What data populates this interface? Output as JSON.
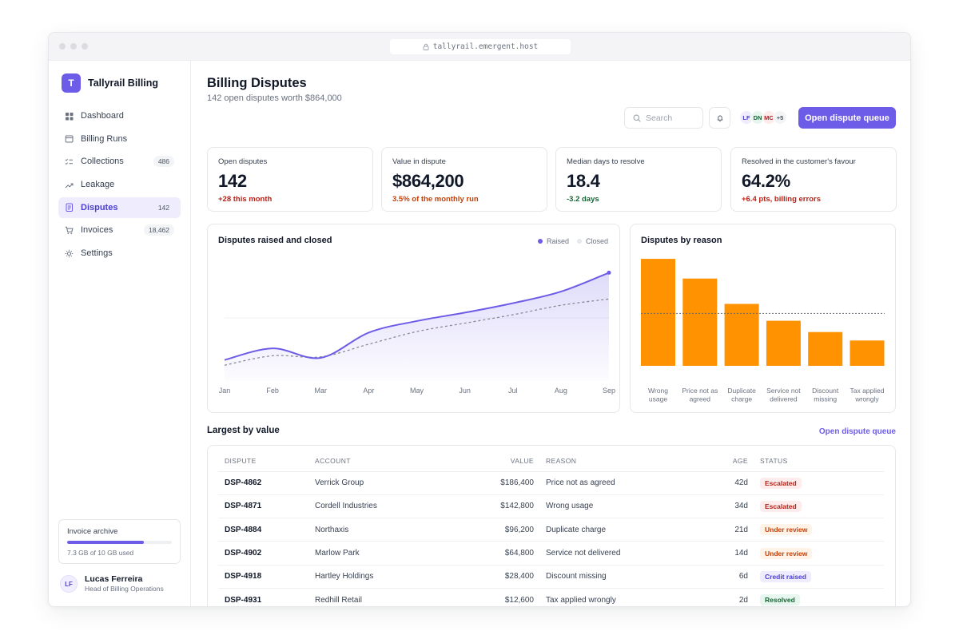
{
  "browser": {
    "url": "tallyrail.emergent.host"
  },
  "brand": {
    "logo_letter": "T",
    "name": "Tallyrail Billing"
  },
  "sidebar": {
    "items": [
      {
        "label": "Dashboard",
        "icon": "grid-icon",
        "badge": ""
      },
      {
        "label": "Billing Runs",
        "icon": "calendar-icon",
        "badge": ""
      },
      {
        "label": "Collections",
        "icon": "checklist-icon",
        "badge": "486"
      },
      {
        "label": "Leakage",
        "icon": "trend-icon",
        "badge": ""
      },
      {
        "label": "Disputes",
        "icon": "document-icon",
        "badge": "142",
        "active": true
      },
      {
        "label": "Invoices",
        "icon": "cart-icon",
        "badge": "18,462"
      },
      {
        "label": "Settings",
        "icon": "gear-icon",
        "badge": ""
      }
    ],
    "storage": {
      "title": "Invoice archive",
      "used_fraction": 0.73,
      "text": "7.3 GB of 10 GB used"
    },
    "user": {
      "initials": "LF",
      "name": "Lucas Ferreira",
      "role": "Head of Billing Operations"
    }
  },
  "header": {
    "title": "Billing Disputes",
    "subtitle": "142 open disputes worth $864,000",
    "search_placeholder": "Search",
    "avatars": [
      {
        "initials": "LF",
        "bg": "#eeecfd",
        "fg": "#4c3fcf"
      },
      {
        "initials": "DN",
        "bg": "#e6f6ee",
        "fg": "#166534"
      },
      {
        "initials": "MC",
        "bg": "#fdecec",
        "fg": "#b91c1c"
      },
      {
        "initials": "+5",
        "bg": "#f3f4f6",
        "fg": "#4b5563"
      }
    ],
    "cta_label": "Open dispute queue"
  },
  "kpis": [
    {
      "label": "Open disputes",
      "value": "142",
      "delta": "+28 this month",
      "delta_color": "#b42318"
    },
    {
      "label": "Value in dispute",
      "value": "$864,200",
      "delta": "3.5% of the monthly run",
      "delta_color": "#c2410c"
    },
    {
      "label": "Median days to resolve",
      "value": "18.4",
      "delta": "-3.2 days",
      "delta_color": "#166534"
    },
    {
      "label": "Resolved in the customer's favour",
      "value": "64.2%",
      "delta": "+6.4 pts, billing errors",
      "delta_color": "#b42318"
    }
  ],
  "line_card": {
    "title": "Disputes raised and closed",
    "legend": [
      "Raised",
      "Closed"
    ]
  },
  "bar_card": {
    "title": "Disputes by reason"
  },
  "colors": {
    "accent": "#6c5ce7",
    "bar": "#ff9200",
    "closed": "#8a8a96"
  },
  "chart_data": [
    {
      "type": "line",
      "title": "Disputes raised and closed",
      "x": [
        "Jan",
        "Feb",
        "Mar",
        "Apr",
        "May",
        "Jun",
        "Jul",
        "Aug",
        "Sep"
      ],
      "series": [
        {
          "name": "Raised",
          "values": [
            20,
            31,
            22,
            46,
            57,
            65,
            74,
            85,
            103
          ]
        },
        {
          "name": "Closed",
          "values": [
            15,
            24,
            23,
            35,
            47,
            55,
            63,
            72,
            78
          ]
        }
      ],
      "ylim": [
        0,
        120
      ],
      "grid": true,
      "legend": "top-right"
    },
    {
      "type": "bar",
      "title": "Disputes by reason",
      "categories": [
        [
          "Wrong",
          "usage"
        ],
        [
          "Price not as",
          "agreed"
        ],
        [
          "Duplicate",
          "charge"
        ],
        [
          "Service not",
          "delivered"
        ],
        [
          "Discount",
          "missing"
        ],
        [
          "Tax applied",
          "wrongly"
        ]
      ],
      "values": [
        38,
        31,
        22,
        16,
        12,
        9
      ],
      "average": 18.6,
      "ylim": [
        0,
        40
      ]
    }
  ],
  "table": {
    "title": "Largest by value",
    "link": "Open dispute queue",
    "columns": [
      "DISPUTE",
      "ACCOUNT",
      "VALUE",
      "REASON",
      "AGE",
      "STATUS"
    ],
    "rows": [
      {
        "id": "DSP-4862",
        "account": "Verrick Group",
        "value": "$186,400",
        "reason": "Price not as agreed",
        "age": "42d",
        "status": "Escalated",
        "status_bg": "#fdecec",
        "status_fg": "#b42318"
      },
      {
        "id": "DSP-4871",
        "account": "Cordell Industries",
        "value": "$142,800",
        "reason": "Wrong usage",
        "age": "34d",
        "status": "Escalated",
        "status_bg": "#fdecec",
        "status_fg": "#b42318"
      },
      {
        "id": "DSP-4884",
        "account": "Northaxis",
        "value": "$96,200",
        "reason": "Duplicate charge",
        "age": "21d",
        "status": "Under review",
        "status_bg": "#fef3e6",
        "status_fg": "#c2410c"
      },
      {
        "id": "DSP-4902",
        "account": "Marlow Park",
        "value": "$64,800",
        "reason": "Service not delivered",
        "age": "14d",
        "status": "Under review",
        "status_bg": "#fef3e6",
        "status_fg": "#c2410c"
      },
      {
        "id": "DSP-4918",
        "account": "Hartley Holdings",
        "value": "$28,400",
        "reason": "Discount missing",
        "age": "6d",
        "status": "Credit raised",
        "status_bg": "#efedfd",
        "status_fg": "#4c3fcf"
      },
      {
        "id": "DSP-4931",
        "account": "Redhill Retail",
        "value": "$12,600",
        "reason": "Tax applied wrongly",
        "age": "2d",
        "status": "Resolved",
        "status_bg": "#e7f6ee",
        "status_fg": "#166534"
      }
    ]
  }
}
